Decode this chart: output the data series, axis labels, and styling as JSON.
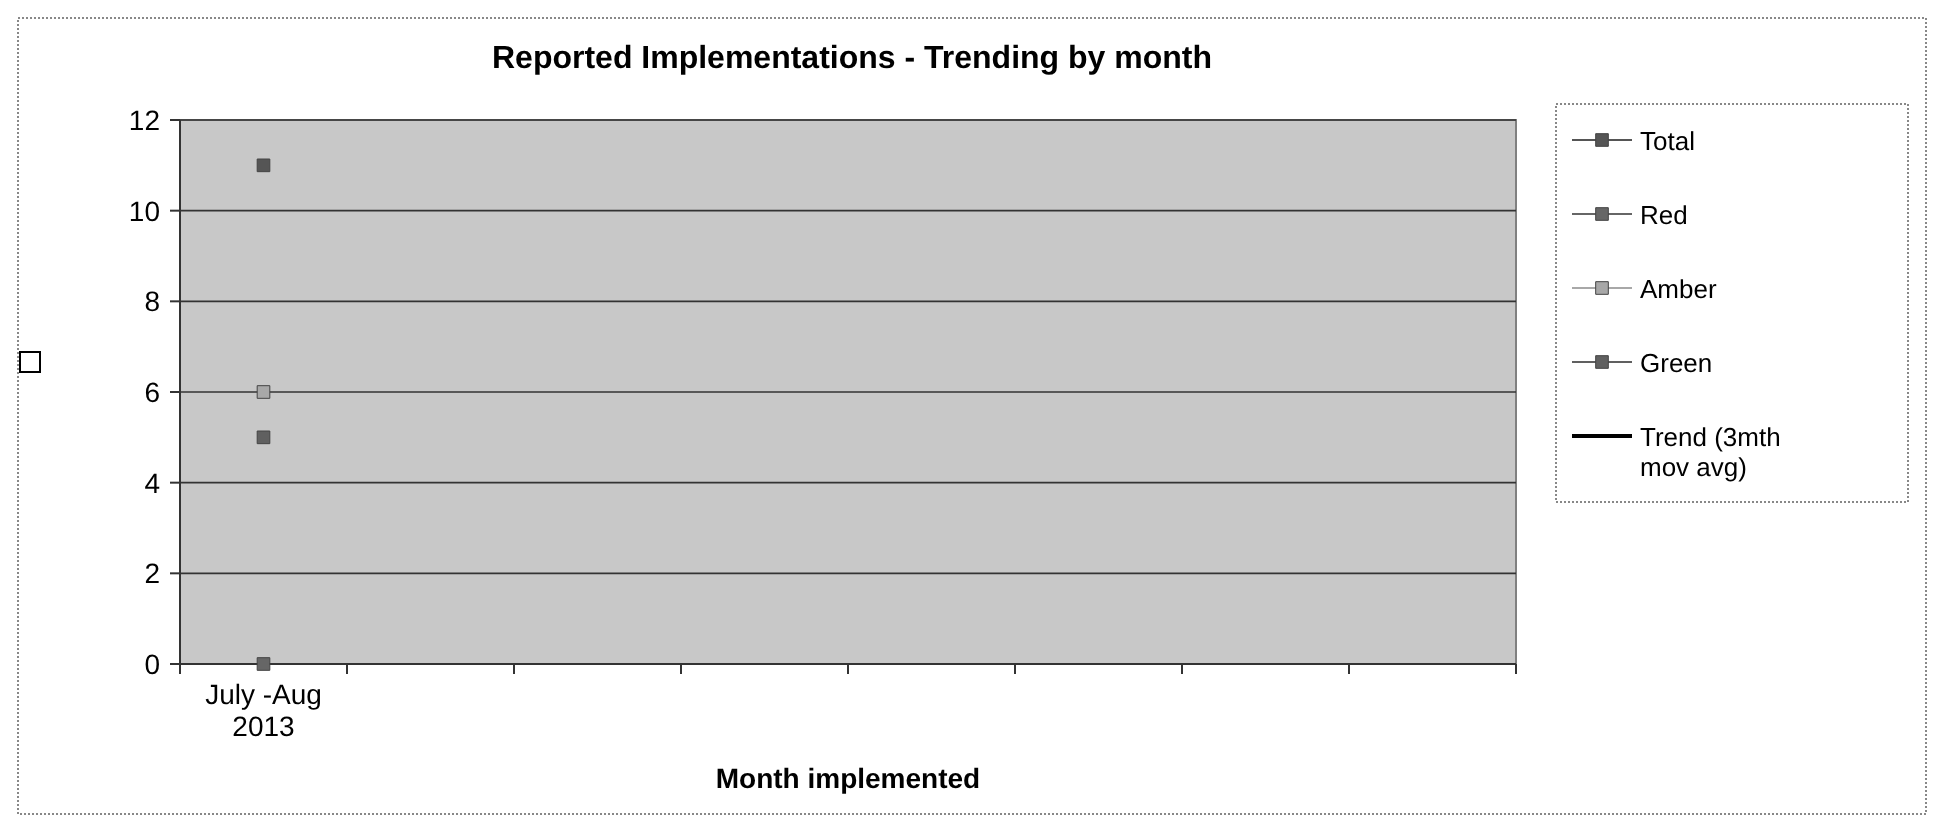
{
  "chart_data": {
    "type": "line",
    "title": "Reported Implementations - Trending by month",
    "xlabel": "Month implemented",
    "categories": [
      "July -Aug\n2013",
      null,
      null,
      null,
      null,
      null,
      null,
      null
    ],
    "series": [
      {
        "name": "Total",
        "color": "#555555",
        "values": [
          11,
          null,
          null,
          null,
          null,
          null,
          null,
          null
        ]
      },
      {
        "name": "Red",
        "color": "#666666",
        "values": [
          0,
          null,
          null,
          null,
          null,
          null,
          null,
          null
        ]
      },
      {
        "name": "Amber",
        "color": "#a8a8a8",
        "values": [
          6,
          null,
          null,
          null,
          null,
          null,
          null,
          null
        ]
      },
      {
        "name": "Green",
        "color": "#606060",
        "values": [
          5,
          null,
          null,
          null,
          null,
          null,
          null,
          null
        ]
      },
      {
        "name": "Trend (3mth\nmov avg)",
        "color": "#000000",
        "marker": "none",
        "values": [
          null,
          null,
          null,
          null,
          null,
          null,
          null,
          null
        ]
      }
    ],
    "ylim": [
      0,
      12
    ],
    "yticks": [
      0,
      2,
      4,
      6,
      8,
      10,
      12
    ],
    "grid": "y",
    "legend": "right",
    "marker": "square"
  }
}
